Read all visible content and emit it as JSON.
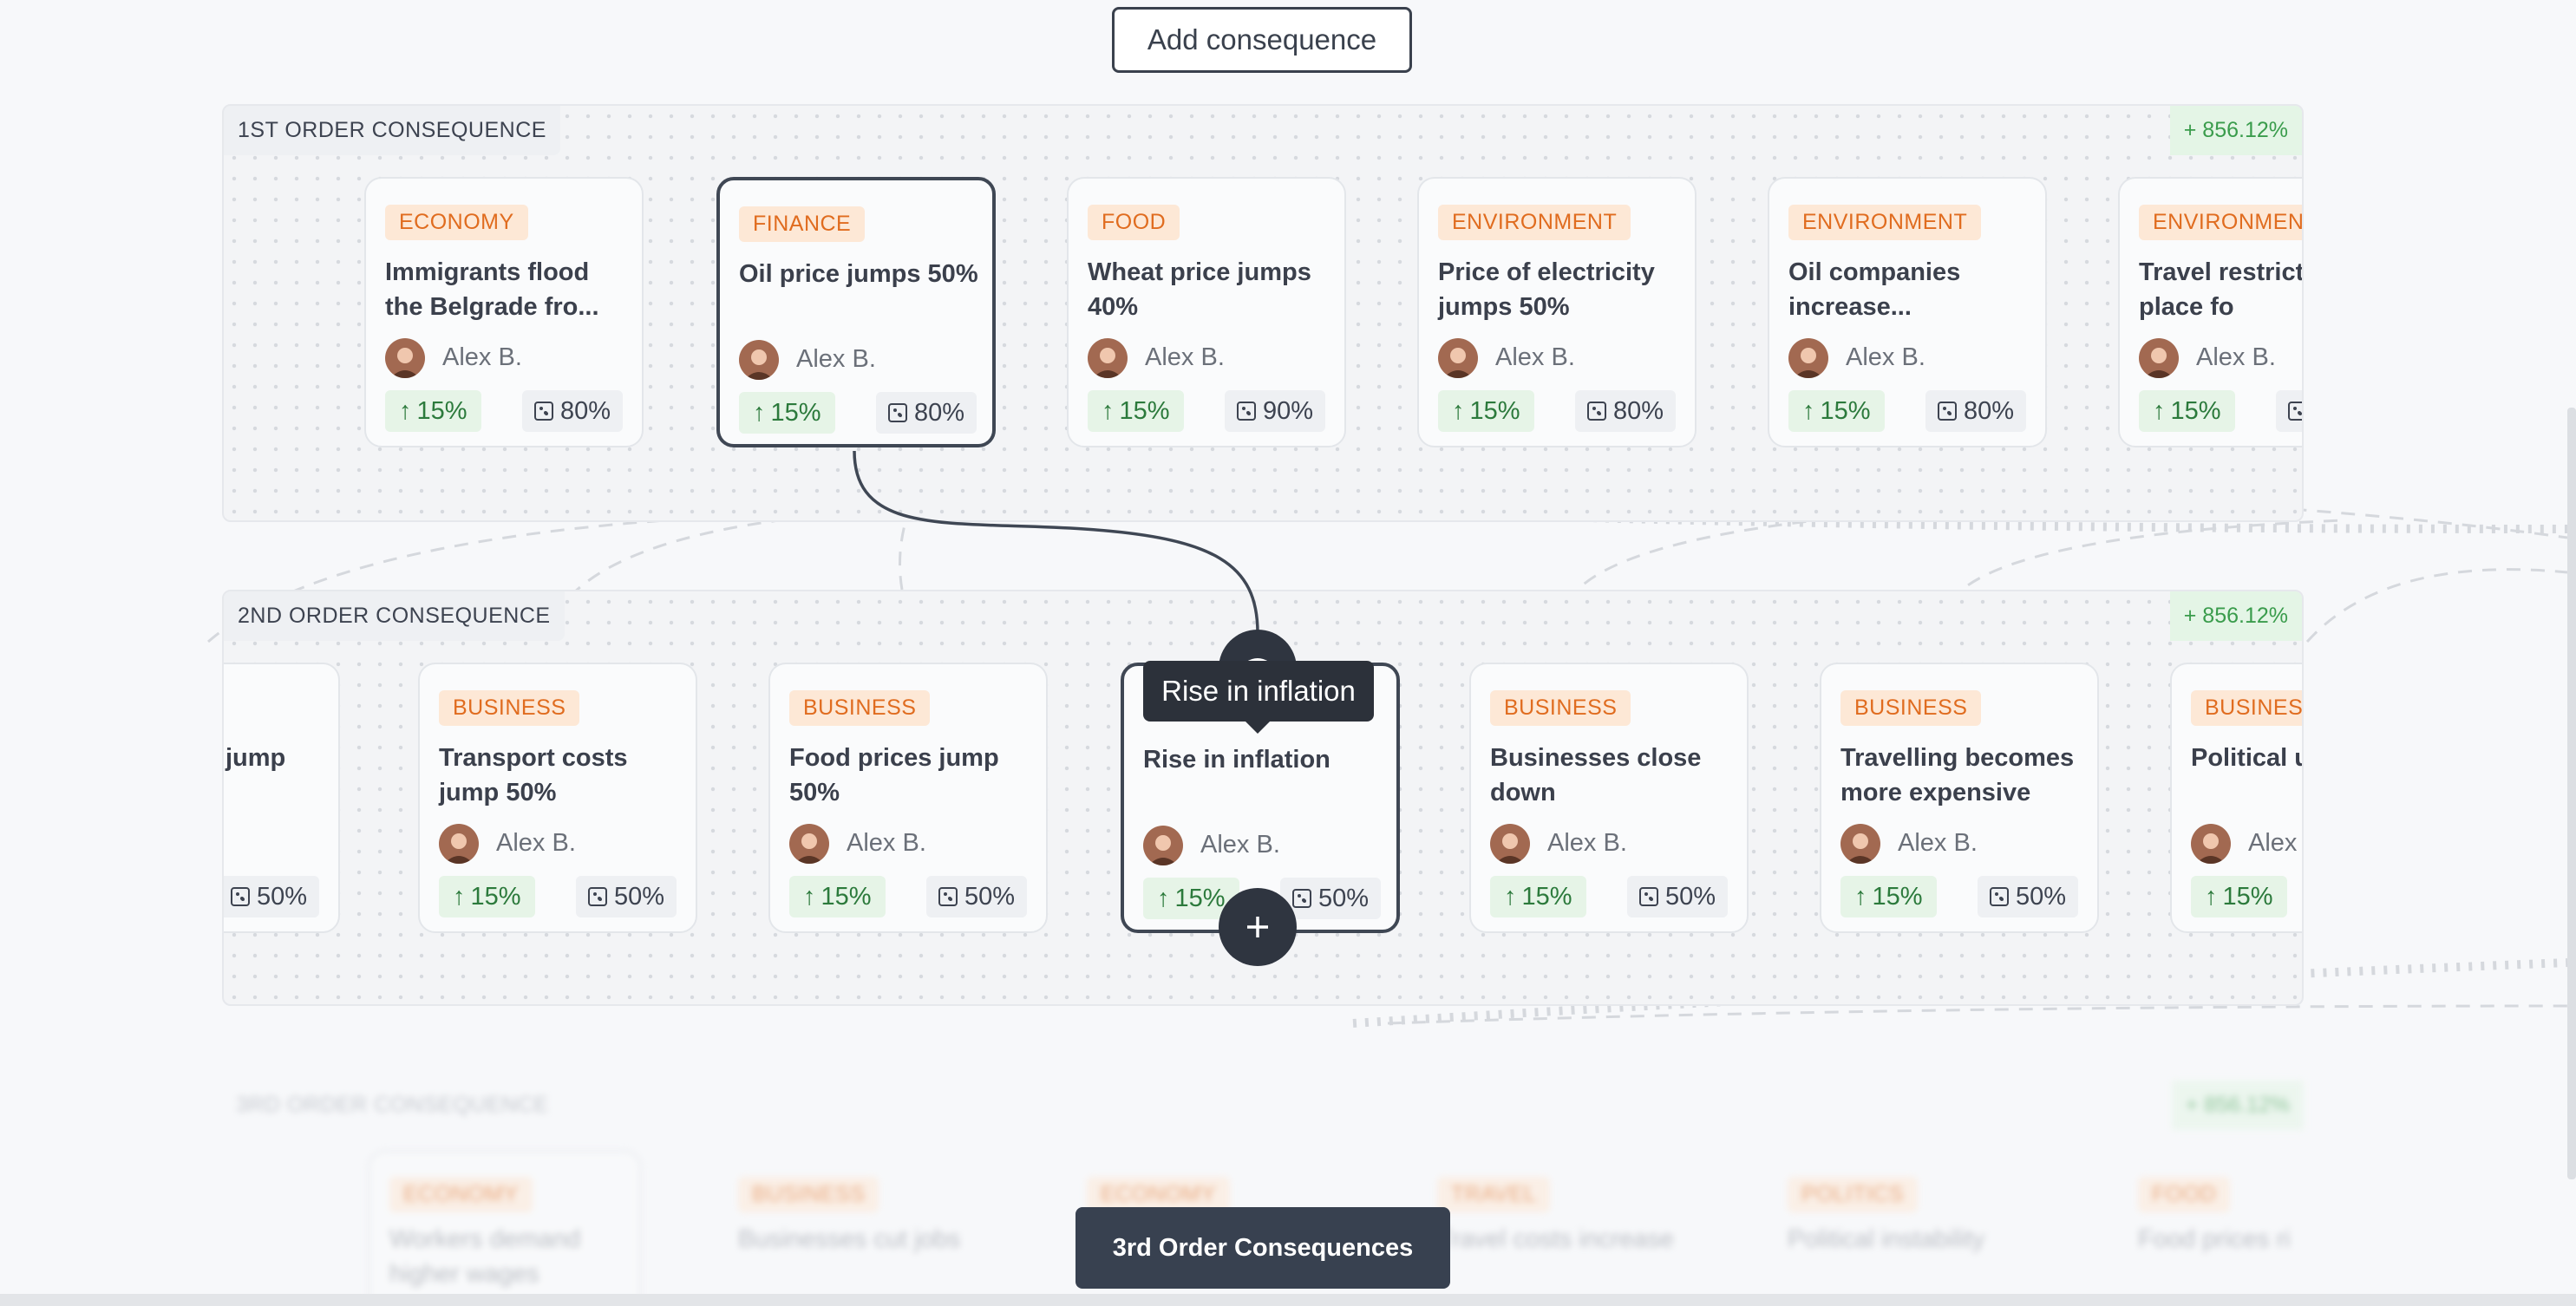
{
  "toolbar": {
    "add_label": "Add consequence"
  },
  "tooltip": "Rise in inflation",
  "footer_button": "3rd Order Consequences",
  "icons": {
    "eye": "eye-icon",
    "plus": "plus-icon",
    "arrow": "arrow-up-icon",
    "dice": "dice-icon"
  },
  "first_order": {
    "label": "1ST ORDER CONSEQUENCE",
    "delta": "+ 856.12%",
    "cards": [
      {
        "tag": "ECONOMY",
        "title": "Immigrants flood the Belgrade fro...",
        "author": "Alex B.",
        "impact": "15%",
        "probability": "80%"
      },
      {
        "tag": "FINANCE",
        "title": "Oil price jumps 50%",
        "author": "Alex B.",
        "impact": "15%",
        "probability": "80%"
      },
      {
        "tag": "FOOD",
        "title": "Wheat price jumps 40%",
        "author": "Alex B.",
        "impact": "15%",
        "probability": "90%"
      },
      {
        "tag": "ENVIRONMENT",
        "title": "Price of electricity jumps 50%",
        "author": "Alex B.",
        "impact": "15%",
        "probability": "80%"
      },
      {
        "tag": "ENVIRONMENT",
        "title": "Oil companies increase...",
        "author": "Alex B.",
        "impact": "15%",
        "probability": "80%"
      },
      {
        "tag": "ENVIRONMENT",
        "title": "Travel restrict put in place fo",
        "author": "Alex B.",
        "impact": "15%",
        "probability": ""
      }
    ]
  },
  "second_order": {
    "label": "2ND ORDER CONSEQUENCE",
    "delta": "+ 856.12%",
    "cards": [
      {
        "tag": "",
        "title": "jump",
        "author": "",
        "impact": "",
        "probability": "50%"
      },
      {
        "tag": "BUSINESS",
        "title": "Transport costs jump 50%",
        "author": "Alex B.",
        "impact": "15%",
        "probability": "50%"
      },
      {
        "tag": "BUSINESS",
        "title": "Food prices jump 50%",
        "author": "Alex B.",
        "impact": "15%",
        "probability": "50%"
      },
      {
        "tag": "",
        "title": "Rise in inflation",
        "author": "Alex B.",
        "impact": "15%",
        "probability": "50%"
      },
      {
        "tag": "BUSINESS",
        "title": "Businesses close down",
        "author": "Alex B.",
        "impact": "15%",
        "probability": "50%"
      },
      {
        "tag": "BUSINESS",
        "title": "Travelling becomes more expensive",
        "author": "Alex B.",
        "impact": "15%",
        "probability": "50%"
      },
      {
        "tag": "BUSINESS",
        "title": "Political u",
        "author": "Alex",
        "impact": "15%",
        "probability": ""
      }
    ]
  },
  "third_order": {
    "label": "3RD ORDER CONSEQUENCE",
    "delta": "+ 856.12%",
    "cards": [
      {
        "tag": "ECONOMY",
        "title": "Workers demand higher wages"
      },
      {
        "tag": "BUSINESS",
        "title": "Businesses cut jobs"
      },
      {
        "tag": "ECONOMY",
        "title": ""
      },
      {
        "tag": "TRAVEL",
        "title": "Travel costs increase"
      },
      {
        "tag": "POLITICS",
        "title": "Political instability"
      },
      {
        "tag": "FOOD",
        "title": "Food prices ri"
      }
    ]
  }
}
